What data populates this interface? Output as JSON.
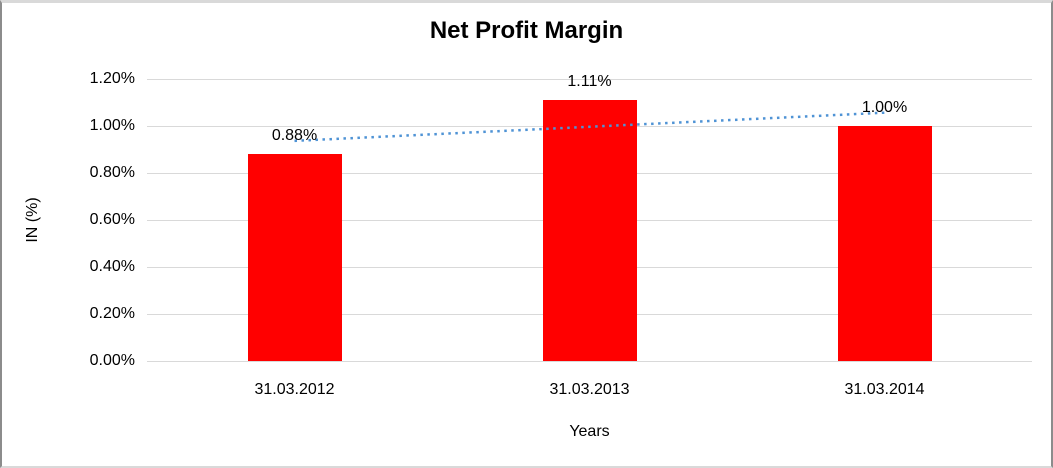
{
  "chart_data": {
    "type": "bar",
    "title": "Net Profit Margin",
    "xlabel": "Years",
    "ylabel": "IN (%)",
    "categories": [
      "31.03.2012",
      "31.03.2013",
      "31.03.2014"
    ],
    "values": [
      0.88,
      1.11,
      1.0
    ],
    "value_labels": [
      "0.88%",
      "1.11%",
      "1.00%"
    ],
    "ylim": [
      0,
      1.2
    ],
    "y_tick_values": [
      0,
      0.2,
      0.4,
      0.6,
      0.8,
      1.0,
      1.2
    ],
    "y_tick_labels": [
      "0.00%",
      "0.20%",
      "0.40%",
      "0.60%",
      "0.80%",
      "1.00%",
      "1.20%"
    ],
    "grid": true,
    "legend": "none",
    "bar_color": "#ff0000",
    "gridline_color": "#d9d9d9",
    "trendline": {
      "type": "linear",
      "style": "dotted",
      "color": "#4f93d5"
    }
  }
}
